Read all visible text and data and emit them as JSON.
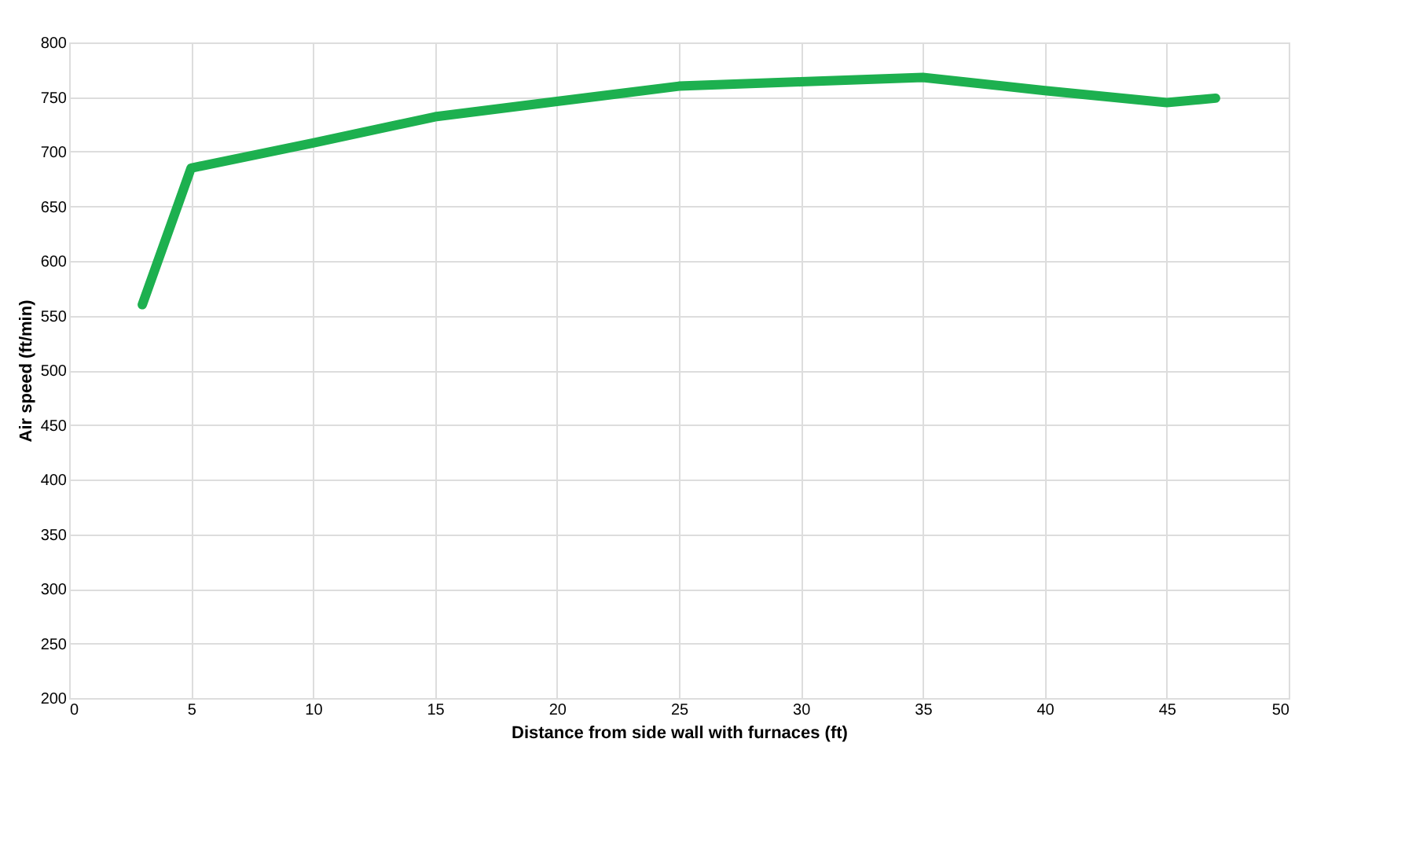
{
  "chart_data": {
    "type": "line",
    "xlabel": "Distance from side wall with furnaces (ft)",
    "ylabel": "Air speed (ft/min)",
    "x": [
      3,
      5,
      10,
      15,
      20,
      25,
      30,
      35,
      40,
      45,
      47
    ],
    "series": [
      {
        "color": "#1db04f",
        "values": [
          560,
          685,
          708,
          732,
          746,
          760,
          764,
          768,
          756,
          745,
          749
        ]
      }
    ],
    "xlim": [
      0,
      50
    ],
    "xticks": [
      0,
      5,
      10,
      15,
      20,
      25,
      30,
      35,
      40,
      45,
      50
    ],
    "ylim": [
      200,
      800
    ],
    "yticks": [
      200,
      250,
      300,
      350,
      400,
      450,
      500,
      550,
      600,
      650,
      700,
      750,
      800
    ],
    "grid": true,
    "legend": false,
    "marker": "none",
    "line_style": "solid"
  }
}
